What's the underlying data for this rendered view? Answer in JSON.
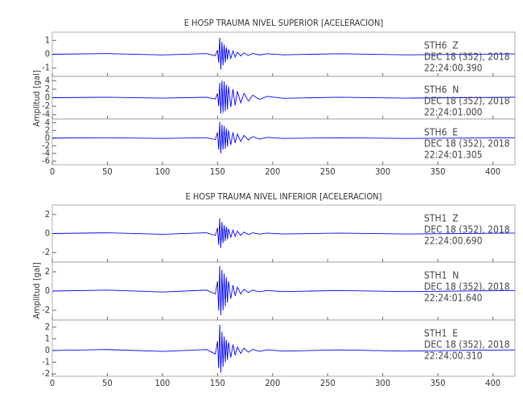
{
  "chart_data": [
    {
      "type": "line",
      "title": "E HOSP TRAUMA NIVEL SUPERIOR [ACELERACION]",
      "ylabel": "Amplitud [gal]",
      "xlim": [
        0,
        420
      ],
      "xticks": [
        0,
        50,
        100,
        150,
        200,
        250,
        300,
        350,
        400
      ],
      "color": "#0000ff",
      "x": [
        0,
        50,
        100,
        140,
        148,
        150,
        151,
        152,
        153,
        154,
        155,
        156,
        157,
        158,
        159,
        160,
        162,
        164,
        166,
        168,
        171,
        174,
        178,
        182,
        188,
        195,
        210,
        260,
        320,
        420
      ],
      "panels": [
        {
          "station": "STH6  Z",
          "date": "DEC 18 (352), 2018",
          "time": "22:24:00.390",
          "ylim": [
            -1.6,
            1.6
          ],
          "yticks": [
            -1,
            0,
            1
          ],
          "values": [
            0,
            0.05,
            -0.05,
            0.05,
            -0.1,
            0.3,
            -0.6,
            1.2,
            -1.1,
            0.9,
            -0.8,
            0.7,
            -0.6,
            0.5,
            -0.4,
            0.35,
            -0.3,
            0.25,
            -0.2,
            0.15,
            -0.12,
            0.1,
            -0.08,
            0.06,
            -0.05,
            0.04,
            -0.04,
            0.04,
            -0.04,
            0.03
          ]
        },
        {
          "station": "STH6  N",
          "date": "DEC 18 (352), 2018",
          "time": "22:24:01.000",
          "ylim": [
            -5,
            5
          ],
          "yticks": [
            -4,
            -2,
            0,
            2,
            4
          ],
          "values": [
            0,
            0.1,
            -0.1,
            0.1,
            -0.3,
            1,
            -2,
            3.5,
            -3.8,
            4,
            -3.5,
            3.8,
            -3.2,
            3,
            -2.8,
            2.6,
            -2.2,
            2,
            -1.8,
            1.5,
            -1.2,
            1,
            -0.8,
            0.6,
            -0.4,
            0.3,
            -0.15,
            0.1,
            -0.1,
            0.1
          ]
        },
        {
          "station": "STH6  E",
          "date": "DEC 18 (352), 2018",
          "time": "22:24:01.305",
          "ylim": [
            -7,
            5
          ],
          "yticks": [
            -6,
            -4,
            -2,
            0,
            2,
            4
          ],
          "values": [
            0,
            0.1,
            -0.1,
            0.1,
            -0.4,
            1.5,
            -3,
            4.2,
            -4,
            3.5,
            -3,
            3.2,
            -2.8,
            2.5,
            -2.2,
            2,
            -1.8,
            1.5,
            -1.3,
            1.1,
            -0.9,
            0.7,
            -0.5,
            0.4,
            -0.3,
            0.2,
            -0.1,
            0.1,
            -0.1,
            0.1
          ]
        }
      ]
    },
    {
      "type": "line",
      "title": "E HOSP TRAUMA NIVEL INFERIOR [ACELERACION]",
      "ylabel": "Amplitud [gal]",
      "xlim": [
        0,
        420
      ],
      "xticks": [
        0,
        50,
        100,
        150,
        200,
        250,
        300,
        350,
        400
      ],
      "color": "#0000ff",
      "x": [
        0,
        50,
        100,
        140,
        148,
        150,
        151,
        152,
        153,
        154,
        155,
        156,
        157,
        158,
        159,
        160,
        162,
        164,
        166,
        168,
        171,
        174,
        178,
        182,
        188,
        195,
        210,
        260,
        320,
        420
      ],
      "panels": [
        {
          "station": "STH1  Z",
          "date": "DEC 18 (352), 2018",
          "time": "22:24:00.690",
          "ylim": [
            -3,
            3
          ],
          "yticks": [
            -2,
            0,
            2
          ],
          "values": [
            0,
            0.08,
            -0.08,
            0.08,
            -0.2,
            0.6,
            -1.2,
            1.6,
            -1.5,
            1.2,
            -1,
            0.9,
            -0.8,
            0.7,
            -0.6,
            0.5,
            -0.4,
            0.35,
            -0.3,
            0.25,
            -0.2,
            0.15,
            -0.1,
            0.08,
            -0.06,
            0.05,
            -0.05,
            0.05,
            -0.05,
            0.05
          ]
        },
        {
          "station": "STH1  N",
          "date": "DEC 18 (352), 2018",
          "time": "22:24:01.640",
          "ylim": [
            -3,
            3
          ],
          "yticks": [
            -2,
            0,
            2
          ],
          "values": [
            0,
            0.1,
            -0.1,
            0.1,
            -0.3,
            1,
            -2,
            2.6,
            -2.5,
            2.2,
            -2,
            1.8,
            -1.6,
            1.4,
            -1.2,
            1,
            -0.8,
            0.6,
            -0.5,
            0.4,
            -0.3,
            0.2,
            -0.15,
            0.1,
            -0.08,
            0.06,
            -0.06,
            0.06,
            -0.06,
            0.06
          ]
        },
        {
          "station": "STH1  E",
          "date": "DEC 18 (352), 2018",
          "time": "22:24:00.310",
          "ylim": [
            -2.2,
            2.6
          ],
          "yticks": [
            -2,
            -1,
            0,
            1,
            2
          ],
          "values": [
            0,
            0.08,
            -0.08,
            0.08,
            -0.3,
            0.8,
            -1.5,
            2.2,
            -1.9,
            1.6,
            -1.4,
            1.2,
            -1,
            0.9,
            -0.8,
            0.7,
            -0.6,
            0.5,
            -0.4,
            0.3,
            -0.25,
            0.2,
            -0.15,
            0.1,
            -0.08,
            0.06,
            -0.05,
            0.05,
            -0.05,
            0.05
          ]
        }
      ]
    }
  ]
}
